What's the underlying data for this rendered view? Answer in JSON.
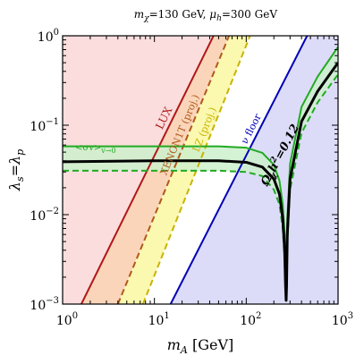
{
  "chart_data": {
    "type": "line",
    "title": "m_χ=130 GeV, μ_h=300 GeV",
    "title_parts": {
      "mchi_value": "=130 GeV, ",
      "mu_value": "=300 GeV"
    },
    "xlabel": "m_A [GeV]",
    "xlabel_parts": {
      "symbol": "m",
      "subscript": "A",
      "unit": " [GeV]"
    },
    "ylabel": "λ_s=λ_p",
    "xscale": "log",
    "yscale": "log",
    "xlim": [
      1,
      1000
    ],
    "ylim": [
      0.001,
      1
    ],
    "x_ticks": [
      {
        "value": 1,
        "base": "10",
        "exp": "0"
      },
      {
        "value": 10,
        "base": "10",
        "exp": "1"
      },
      {
        "value": 100,
        "base": "10",
        "exp": "2"
      },
      {
        "value": 1000,
        "base": "10",
        "exp": "3"
      }
    ],
    "y_ticks": [
      {
        "value": 0.001,
        "base": "10",
        "exp": "−3"
      },
      {
        "value": 0.01,
        "base": "10",
        "exp": "−2"
      },
      {
        "value": 0.1,
        "base": "10",
        "exp": "−1"
      },
      {
        "value": 1,
        "base": "10",
        "exp": "0"
      }
    ],
    "colors": {
      "lux": "#b01818",
      "lux_fill": "#fbdddd",
      "xenon1t": "#b05a1a",
      "xenon1t_fill": "#fad5ba",
      "lz": "#c8b400",
      "lz_fill": "#fbf8b0",
      "nu_floor": "#0000b8",
      "nu_floor_fill": "#dcdcf8",
      "relic": "#000000",
      "sigma_v": "#22aa22",
      "sigma_v_fill": "#cdf0cd"
    },
    "series": [
      {
        "name": "LUX",
        "style": "solid",
        "x": [
          1.6,
          44
        ],
        "y": [
          0.001,
          1
        ]
      },
      {
        "name": "XENON1T (proj.)",
        "style": "dashed",
        "x": [
          4.0,
          65
        ],
        "y": [
          0.001,
          1
        ]
      },
      {
        "name": "LZ (proj.)",
        "style": "dashed",
        "x": [
          7.5,
          110
        ],
        "y": [
          0.001,
          1
        ]
      },
      {
        "name": "ν floor",
        "style": "solid",
        "x": [
          15,
          460
        ],
        "y": [
          0.001,
          1
        ]
      },
      {
        "name": "Ω_χh²=0.12",
        "style": "solid",
        "x": [
          1,
          10,
          50,
          100,
          150,
          200,
          230,
          250,
          262,
          268,
          272,
          275,
          280,
          300,
          400,
          600,
          1000
        ],
        "y": [
          0.039,
          0.04,
          0.04,
          0.0385,
          0.034,
          0.025,
          0.017,
          0.009,
          0.004,
          0.0016,
          0.0011,
          0.0016,
          0.006,
          0.025,
          0.11,
          0.24,
          0.5
        ]
      },
      {
        "name": "<σv>_{v→0} upper",
        "style": "solid",
        "x": [
          1,
          10,
          50,
          100,
          150,
          200,
          230,
          250,
          262,
          268,
          272,
          275,
          280,
          300,
          400,
          600,
          1000
        ],
        "y": [
          0.058,
          0.058,
          0.058,
          0.056,
          0.049,
          0.036,
          0.024,
          0.013,
          0.006,
          0.0024,
          0.0011,
          0.0024,
          0.009,
          0.037,
          0.16,
          0.35,
          0.75
        ]
      },
      {
        "name": "<σv>_{v→0} lower",
        "style": "dashed",
        "x": [
          1,
          10,
          50,
          100,
          150,
          200,
          230,
          250,
          262,
          268,
          272,
          275,
          280,
          300,
          400,
          600,
          1000
        ],
        "y": [
          0.031,
          0.031,
          0.031,
          0.03,
          0.027,
          0.019,
          0.013,
          0.007,
          0.003,
          0.0013,
          0.0011,
          0.0013,
          0.0048,
          0.019,
          0.082,
          0.18,
          0.37
        ]
      }
    ],
    "annotations": {
      "lux": "LUX",
      "xenon1t": "XENON1T (proj.)",
      "lz": "LZ (proj.)",
      "nu_floor": "ν floor",
      "relic_symbol": "Ω",
      "relic_subscript": "χ",
      "relic_rest": "h",
      "relic_sup": "2",
      "relic_value": "=0.12",
      "sigmav_text": "<σv>",
      "sigmav_sub": "v→0"
    }
  }
}
